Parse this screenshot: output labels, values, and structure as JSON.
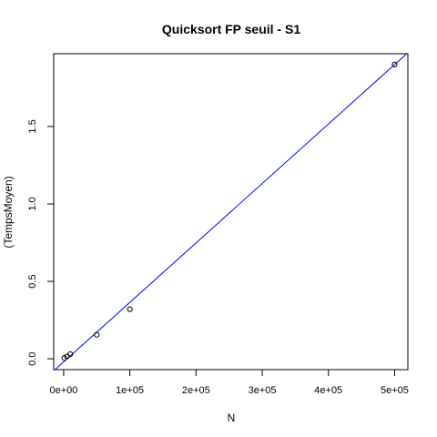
{
  "chart_data": {
    "type": "scatter",
    "title": "Quicksort FP seuil - S1",
    "xlabel": "N",
    "ylabel": "(TempsMoyen)",
    "xlim": [
      -15000,
      520000
    ],
    "ylim": [
      -0.07,
      1.97
    ],
    "xticks": [
      0,
      100000,
      200000,
      300000,
      400000,
      500000
    ],
    "xtick_labels": [
      "0e+00",
      "1e+05",
      "2e+05",
      "3e+05",
      "4e+05",
      "5e+05"
    ],
    "yticks": [
      0,
      0.5,
      1,
      1.5
    ],
    "ytick_labels": [
      "0.0",
      "0.5",
      "1.0",
      "1.5"
    ],
    "grid": false,
    "series": [
      {
        "type": "scatter",
        "marker": "open-circle",
        "points": [
          {
            "x": 1000,
            "y": 0.005
          },
          {
            "x": 5000,
            "y": 0.015
          },
          {
            "x": 10000,
            "y": 0.03
          },
          {
            "x": 50000,
            "y": 0.155
          },
          {
            "x": 100000,
            "y": 0.32
          },
          {
            "x": 500000,
            "y": 1.9
          }
        ]
      },
      {
        "type": "line",
        "color": "#0000ff",
        "intercept": -0.02,
        "slope": 3.84e-06
      }
    ]
  }
}
